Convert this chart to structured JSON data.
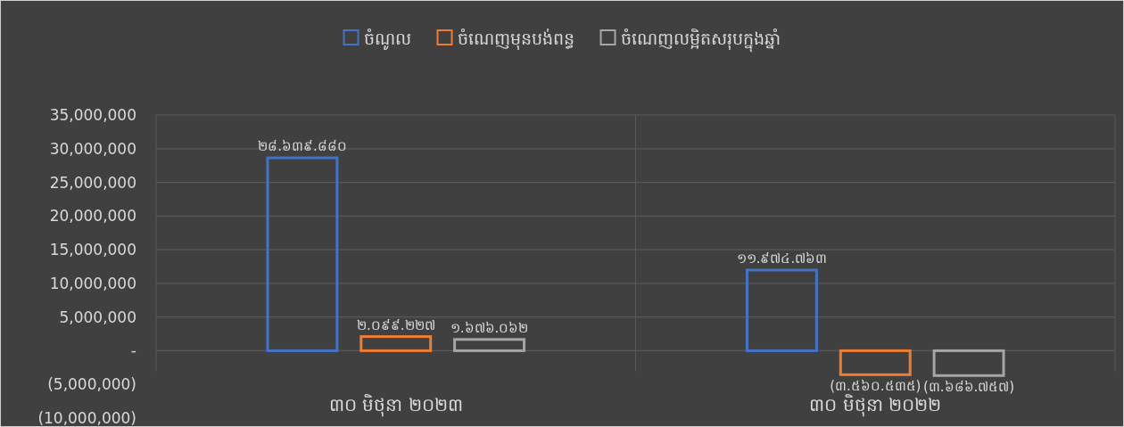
{
  "chart_data": {
    "type": "bar",
    "categories": [
      "៣០ មិថុនា ២០២៣",
      "៣០ មិថុនា ២០២២"
    ],
    "series": [
      {
        "name": "ចំណូល",
        "color": "#4472c4",
        "values": [
          28639880,
          11974763
        ],
        "value_labels": [
          "២៨.៦៣៩.៨៨០",
          "១១.៩៧៤.៧៦៣"
        ]
      },
      {
        "name": "ចំណេញមុនបង់ពន្ធ",
        "color": "#ed7d31",
        "values": [
          2099227,
          -3560535
        ],
        "value_labels": [
          "២.០៩៩.២២៧",
          "(៣.៥៦០.៥៣៥)"
        ]
      },
      {
        "name": "ចំណេញលម្អិតសរុបក្នុងឆ្នាំ",
        "color": "#a5a5a5",
        "values": [
          1676062,
          -3686757
        ],
        "value_labels": [
          "១.៦៧៦.០៦២",
          "(៣.៦៨៦.៧៥៧)"
        ]
      }
    ],
    "ylim": [
      -10000000,
      35000000
    ],
    "yticks": [
      {
        "value": -10000000,
        "label": "(10,000,000)"
      },
      {
        "value": -5000000,
        "label": "(5,000,000)"
      },
      {
        "value": 0,
        "label": "-"
      },
      {
        "value": 5000000,
        "label": "5,000,000"
      },
      {
        "value": 10000000,
        "label": "10,000,000"
      },
      {
        "value": 15000000,
        "label": "15,000,000"
      },
      {
        "value": 20000000,
        "label": "20,000,000"
      },
      {
        "value": 25000000,
        "label": "25,000,000"
      },
      {
        "value": 30000000,
        "label": "30,000,000"
      },
      {
        "value": 35000000,
        "label": "35,000,000"
      }
    ],
    "grid": true,
    "legend": "top"
  }
}
